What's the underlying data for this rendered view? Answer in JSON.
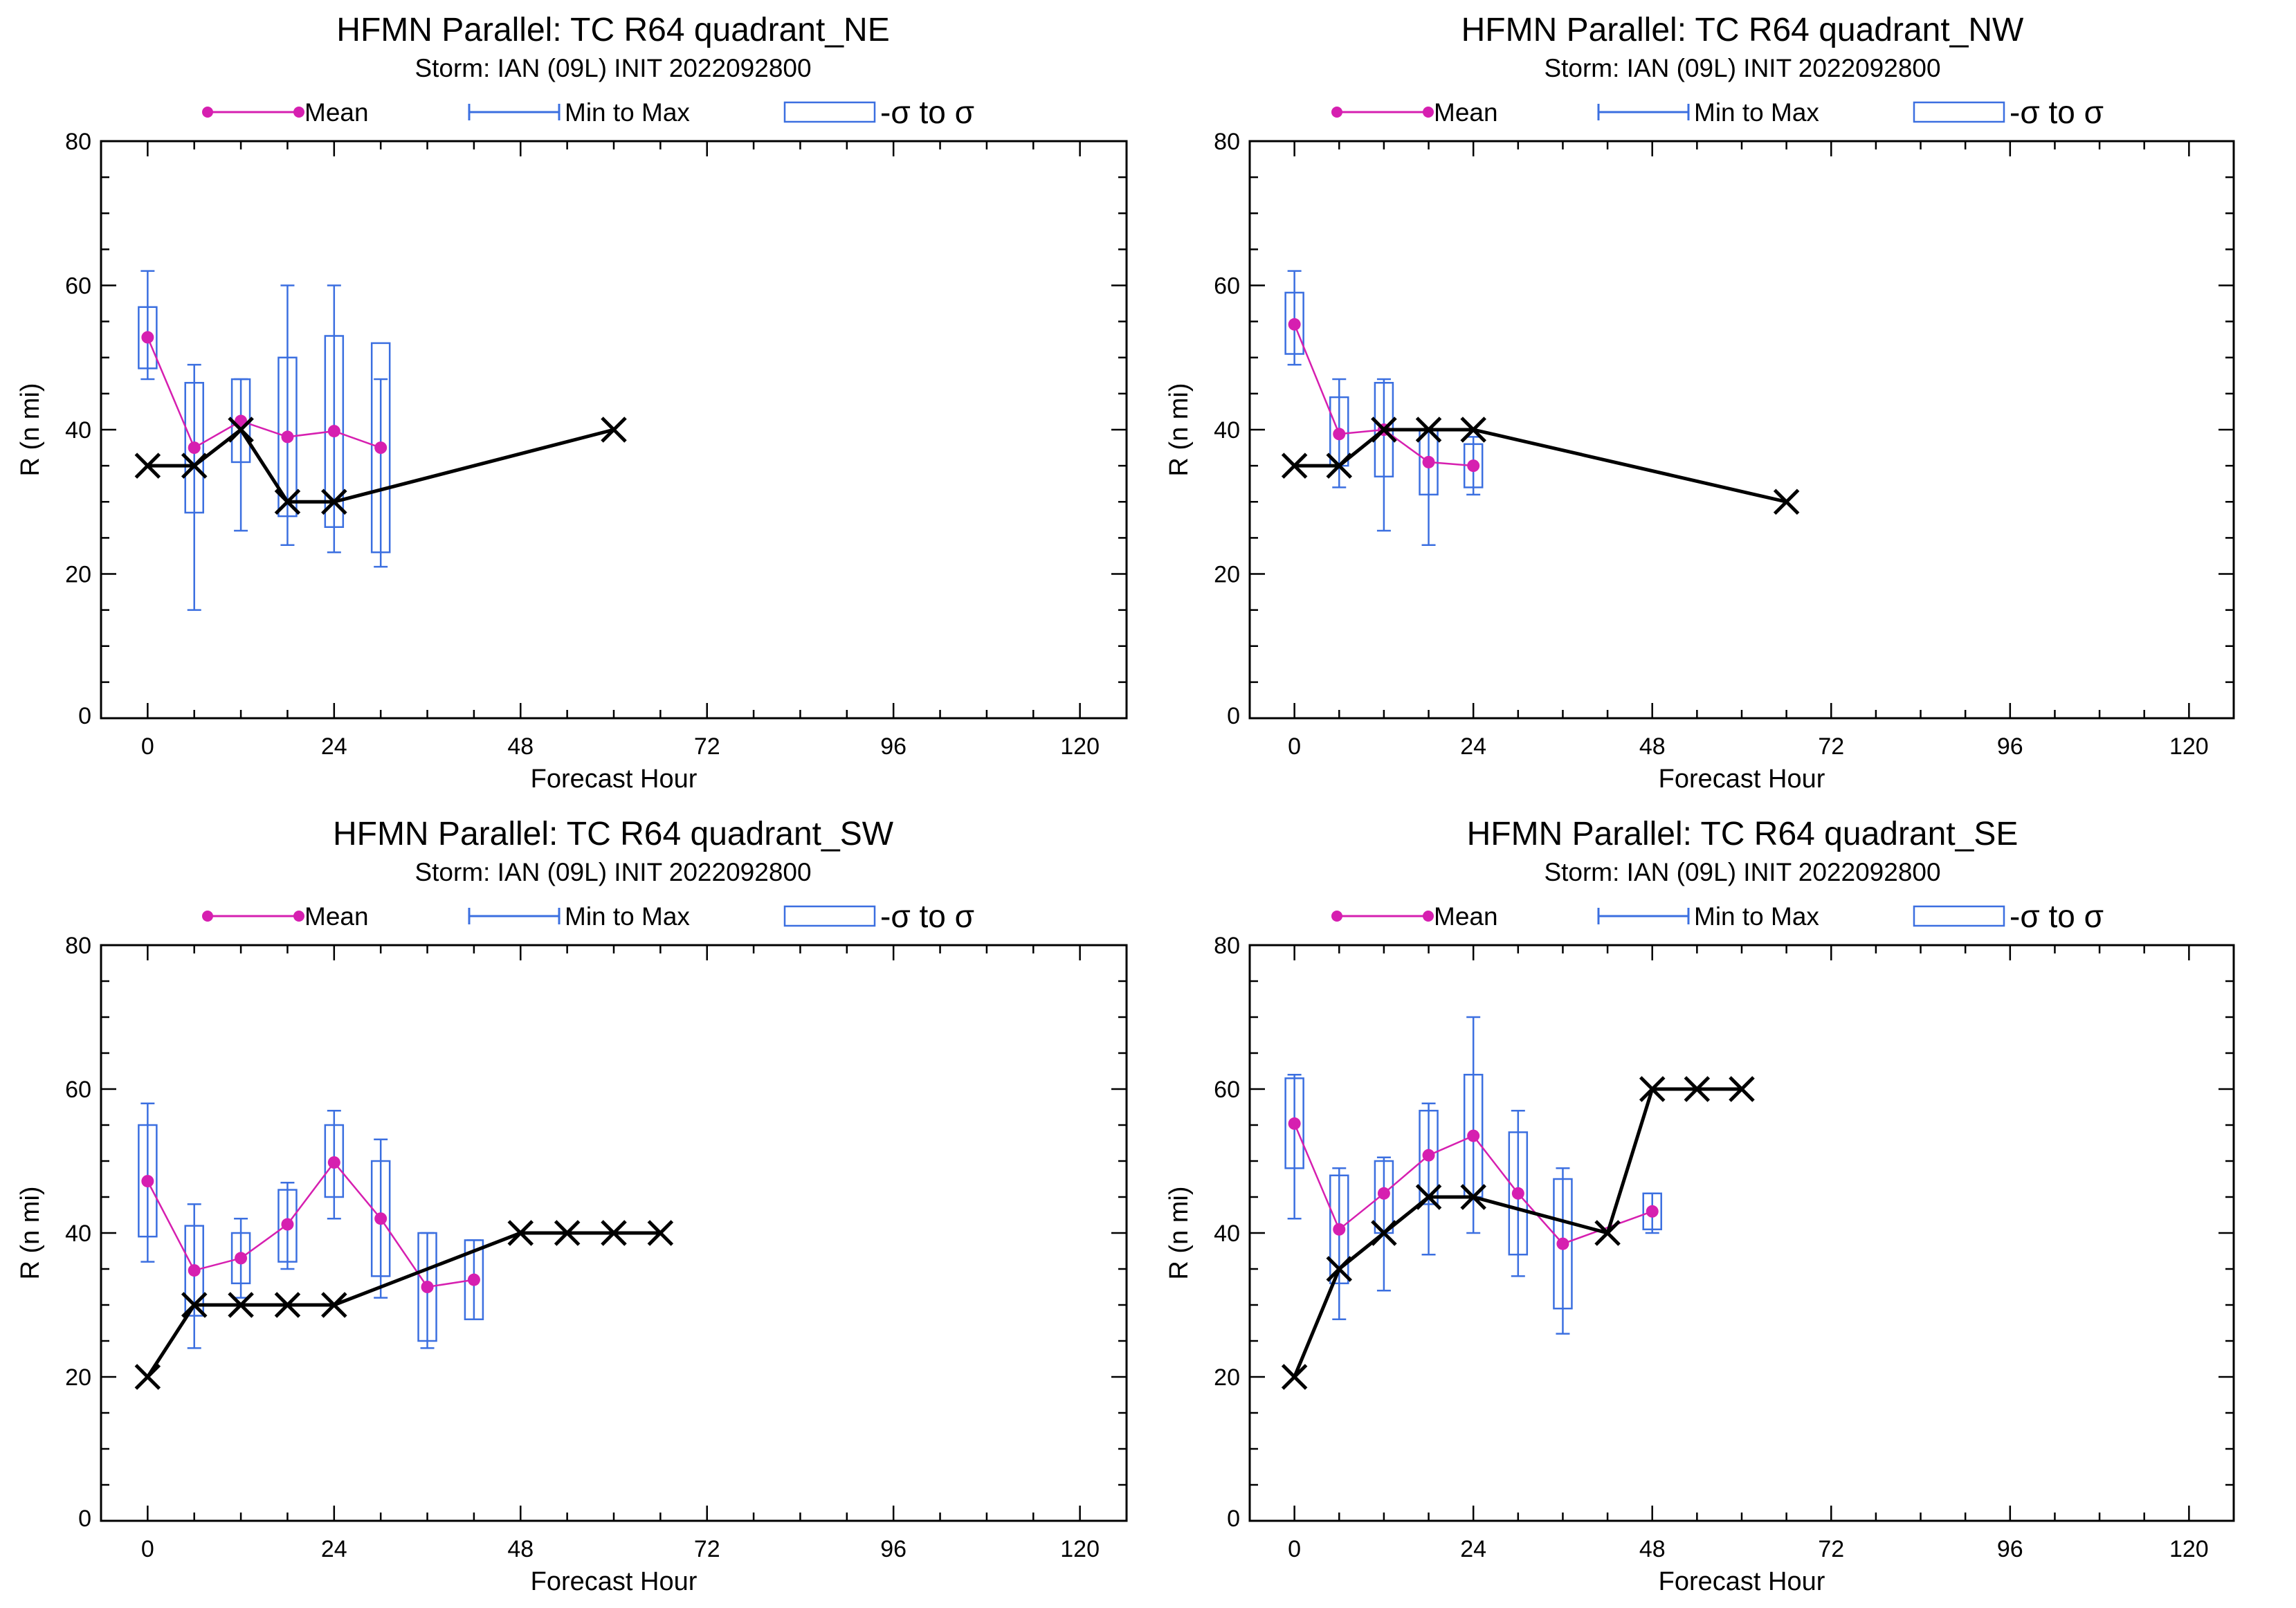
{
  "colors": {
    "mean": "#d61fb0",
    "box": "#3b6fe0",
    "obs": "#000000"
  },
  "legend": {
    "mean": "Mean",
    "minmax": "Min to Max",
    "sigma": "-σ to σ"
  },
  "chart_data": [
    {
      "type": "box",
      "title": "HFMN Parallel: TC  R64 quadrant_NE",
      "subtitle": "Storm: IAN (09L) INIT 2022092800",
      "xlabel": "Forecast Hour",
      "ylabel": "R (n mi)",
      "xlim": [
        -6,
        126
      ],
      "ylim": [
        0,
        80
      ],
      "xticks": [
        0,
        24,
        48,
        72,
        96,
        120
      ],
      "yticks": [
        0,
        20,
        40,
        60,
        80
      ],
      "boxes": [
        {
          "x": 0,
          "min": 47,
          "max": 62,
          "lo": 48.5,
          "hi": 57,
          "mean": 52.8
        },
        {
          "x": 6,
          "min": 15,
          "max": 49,
          "lo": 28.5,
          "hi": 46.5,
          "mean": 37.5
        },
        {
          "x": 12,
          "min": 26,
          "max": 47,
          "lo": 35.5,
          "hi": 47,
          "mean": 41.2
        },
        {
          "x": 18,
          "min": 24,
          "max": 60,
          "lo": 28,
          "hi": 50,
          "mean": 39
        },
        {
          "x": 24,
          "min": 23,
          "max": 60,
          "lo": 26.5,
          "hi": 53,
          "mean": 39.8
        },
        {
          "x": 30,
          "min": 21,
          "max": 47,
          "lo": 23,
          "hi": 52,
          "mean": 37.5
        }
      ],
      "best_track": {
        "x": [
          0,
          6,
          12,
          18,
          24,
          60
        ],
        "y": [
          35,
          35,
          40,
          30,
          30,
          40
        ]
      }
    },
    {
      "type": "box",
      "title": "HFMN Parallel: TC  R64 quadrant_NW",
      "subtitle": "Storm: IAN (09L) INIT 2022092800",
      "xlabel": "Forecast Hour",
      "ylabel": "R (n mi)",
      "xlim": [
        -6,
        126
      ],
      "ylim": [
        0,
        80
      ],
      "xticks": [
        0,
        24,
        48,
        72,
        96,
        120
      ],
      "yticks": [
        0,
        20,
        40,
        60,
        80
      ],
      "boxes": [
        {
          "x": 0,
          "min": 49,
          "max": 62,
          "lo": 50.5,
          "hi": 59,
          "mean": 54.6
        },
        {
          "x": 6,
          "min": 32,
          "max": 47,
          "lo": 35,
          "hi": 44.5,
          "mean": 39.4
        },
        {
          "x": 12,
          "min": 26,
          "max": 47,
          "lo": 33.5,
          "hi": 46.5,
          "mean": 40
        },
        {
          "x": 18,
          "min": 24,
          "max": 40,
          "lo": 31,
          "hi": 40,
          "mean": 35.5
        },
        {
          "x": 24,
          "min": 31,
          "max": 39,
          "lo": 32,
          "hi": 38,
          "mean": 35
        }
      ],
      "best_track": {
        "x": [
          0,
          6,
          12,
          18,
          24,
          66
        ],
        "y": [
          35,
          35,
          40,
          40,
          40,
          30
        ]
      }
    },
    {
      "type": "box",
      "title": "HFMN Parallel: TC  R64 quadrant_SW",
      "subtitle": "Storm: IAN (09L) INIT 2022092800",
      "xlabel": "Forecast Hour",
      "ylabel": "R (n mi)",
      "xlim": [
        -6,
        126
      ],
      "ylim": [
        0,
        80
      ],
      "xticks": [
        0,
        24,
        48,
        72,
        96,
        120
      ],
      "yticks": [
        0,
        20,
        40,
        60,
        80
      ],
      "boxes": [
        {
          "x": 0,
          "min": 36,
          "max": 58,
          "lo": 39.5,
          "hi": 55,
          "mean": 47.2
        },
        {
          "x": 6,
          "min": 24,
          "max": 44,
          "lo": 28.5,
          "hi": 41,
          "mean": 34.8
        },
        {
          "x": 12,
          "min": 31,
          "max": 42,
          "lo": 33,
          "hi": 40,
          "mean": 36.5
        },
        {
          "x": 18,
          "min": 35,
          "max": 47,
          "lo": 36,
          "hi": 46,
          "mean": 41.2
        },
        {
          "x": 24,
          "min": 42,
          "max": 57,
          "lo": 45,
          "hi": 55,
          "mean": 49.8
        },
        {
          "x": 30,
          "min": 31,
          "max": 53,
          "lo": 34,
          "hi": 50,
          "mean": 42
        },
        {
          "x": 36,
          "min": 24,
          "max": 40,
          "lo": 25,
          "hi": 40,
          "mean": 32.5
        },
        {
          "x": 42,
          "min": 28,
          "max": 39,
          "lo": 28,
          "hi": 39,
          "mean": 33.5
        }
      ],
      "best_track": {
        "x": [
          0,
          6,
          12,
          18,
          24,
          48,
          54,
          60,
          66
        ],
        "y": [
          20,
          30,
          30,
          30,
          30,
          40,
          40,
          40,
          40
        ]
      }
    },
    {
      "type": "box",
      "title": "HFMN Parallel: TC  R64 quadrant_SE",
      "subtitle": "Storm: IAN (09L) INIT 2022092800",
      "xlabel": "Forecast Hour",
      "ylabel": "R (n mi)",
      "xlim": [
        -6,
        126
      ],
      "ylim": [
        0,
        80
      ],
      "xticks": [
        0,
        24,
        48,
        72,
        96,
        120
      ],
      "yticks": [
        0,
        20,
        40,
        60,
        80
      ],
      "boxes": [
        {
          "x": 0,
          "min": 42,
          "max": 62,
          "lo": 49,
          "hi": 61.5,
          "mean": 55.2
        },
        {
          "x": 6,
          "min": 28,
          "max": 49,
          "lo": 33,
          "hi": 48,
          "mean": 40.5
        },
        {
          "x": 12,
          "min": 32,
          "max": 50.5,
          "lo": 40,
          "hi": 50,
          "mean": 45.5
        },
        {
          "x": 18,
          "min": 37,
          "max": 58,
          "lo": 44,
          "hi": 57,
          "mean": 50.8
        },
        {
          "x": 24,
          "min": 40,
          "max": 70,
          "lo": 45,
          "hi": 62,
          "mean": 53.5
        },
        {
          "x": 30,
          "min": 34,
          "max": 57,
          "lo": 37,
          "hi": 54,
          "mean": 45.5
        },
        {
          "x": 36,
          "min": 26,
          "max": 49,
          "lo": 29.5,
          "hi": 47.5,
          "mean": 38.5
        },
        {
          "x": 48,
          "min": 40,
          "max": 45.5,
          "lo": 40.5,
          "hi": 45.5,
          "mean": 43
        }
      ],
      "best_track": {
        "x": [
          0,
          6,
          12,
          18,
          24,
          42,
          48,
          54,
          60
        ],
        "y": [
          20,
          35,
          40,
          45,
          45,
          40,
          60,
          60,
          60
        ]
      }
    }
  ]
}
